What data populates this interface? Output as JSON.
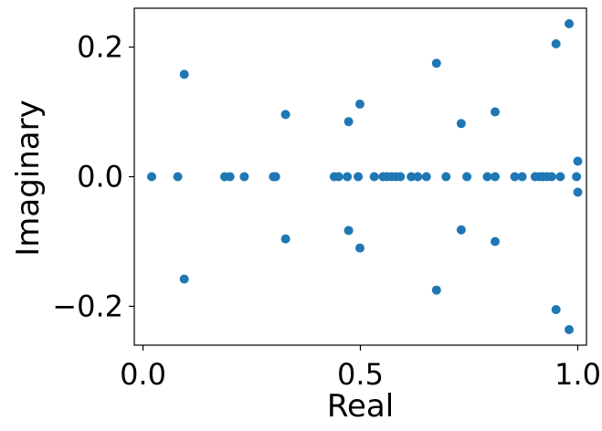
{
  "chart_data": {
    "type": "scatter",
    "xlabel": "Real",
    "ylabel": "Imaginary",
    "xlim": [
      -0.02,
      1.02
    ],
    "ylim": [
      -0.26,
      0.26
    ],
    "xticks": [
      {
        "value": 0.0,
        "label": "0.0"
      },
      {
        "value": 0.5,
        "label": "0.5"
      },
      {
        "value": 1.0,
        "label": "1.0"
      }
    ],
    "yticks": [
      {
        "value": -0.2,
        "label": "−0.2"
      },
      {
        "value": 0.0,
        "label": "0.0"
      },
      {
        "value": 0.2,
        "label": "0.2"
      }
    ],
    "grid": false,
    "marker_color": "#1f77b4",
    "series": [
      {
        "points": [
          [
            0.02,
            0.0
          ],
          [
            0.08,
            0.0
          ],
          [
            0.188,
            0.0
          ],
          [
            0.2,
            0.0
          ],
          [
            0.233,
            0.0
          ],
          [
            0.3,
            0.0
          ],
          [
            0.305,
            0.0
          ],
          [
            0.44,
            0.0
          ],
          [
            0.45,
            0.0
          ],
          [
            0.47,
            0.0
          ],
          [
            0.495,
            0.0
          ],
          [
            0.532,
            0.0
          ],
          [
            0.552,
            0.0
          ],
          [
            0.562,
            0.0
          ],
          [
            0.572,
            0.0
          ],
          [
            0.582,
            0.0
          ],
          [
            0.592,
            0.0
          ],
          [
            0.617,
            0.0
          ],
          [
            0.632,
            0.0
          ],
          [
            0.652,
            0.0
          ],
          [
            0.697,
            0.0
          ],
          [
            0.745,
            0.0
          ],
          [
            0.792,
            0.0
          ],
          [
            0.81,
            0.0
          ],
          [
            0.855,
            0.0
          ],
          [
            0.872,
            0.0
          ],
          [
            0.902,
            0.0
          ],
          [
            0.912,
            0.0
          ],
          [
            0.92,
            0.0
          ],
          [
            0.93,
            0.0
          ],
          [
            0.94,
            0.0
          ],
          [
            0.96,
            0.0
          ],
          [
            0.997,
            0.0
          ],
          [
            0.095,
            0.158
          ],
          [
            0.095,
            -0.158
          ],
          [
            0.328,
            0.096
          ],
          [
            0.328,
            -0.096
          ],
          [
            0.473,
            0.085
          ],
          [
            0.473,
            -0.083
          ],
          [
            0.499,
            0.112
          ],
          [
            0.499,
            -0.11
          ],
          [
            0.675,
            0.175
          ],
          [
            0.675,
            -0.175
          ],
          [
            0.732,
            0.082
          ],
          [
            0.732,
            -0.082
          ],
          [
            0.81,
            0.1
          ],
          [
            0.81,
            -0.1
          ],
          [
            0.95,
            0.205
          ],
          [
            0.95,
            -0.205
          ],
          [
            0.98,
            0.236
          ],
          [
            0.98,
            -0.236
          ],
          [
            1.0,
            0.024
          ],
          [
            1.0,
            -0.024
          ]
        ]
      }
    ]
  }
}
